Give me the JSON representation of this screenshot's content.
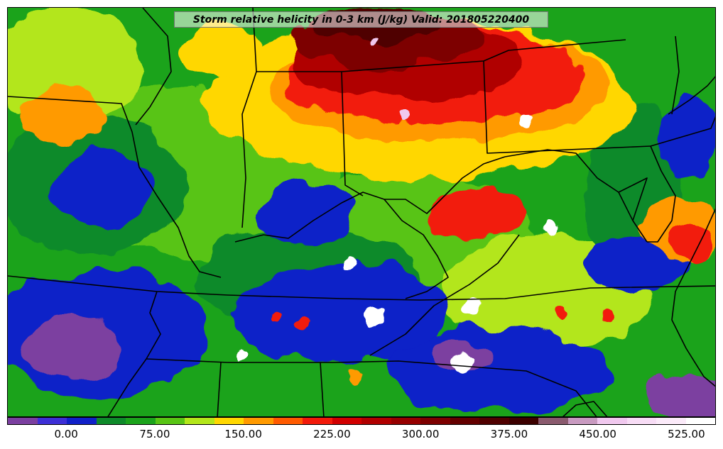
{
  "title": "Storm relative helicity in 0-3 km (J/kg) Valid: 201805220400",
  "colorbar": {
    "colors": [
      "#7b3fa0",
      "#3d2fd6",
      "#1020c8",
      "#0e8a2a",
      "#1ba31b",
      "#58c414",
      "#b3e61a",
      "#ffd700",
      "#ff9a00",
      "#ff5a00",
      "#f21a0a",
      "#d10000",
      "#b00000",
      "#960000",
      "#7d0000",
      "#640000",
      "#500000",
      "#3c0000",
      "#8a5a6e",
      "#c89ac0",
      "#f0c8ee",
      "#f7dcf5",
      "#fbeaf9",
      "#ffffff"
    ],
    "tick_labels": [
      "0.00",
      "75.00",
      "150.00",
      "225.00",
      "300.00",
      "375.00",
      "450.00",
      "525.00"
    ]
  },
  "legend": {
    "min": -50,
    "max": 550,
    "step": 25
  }
}
